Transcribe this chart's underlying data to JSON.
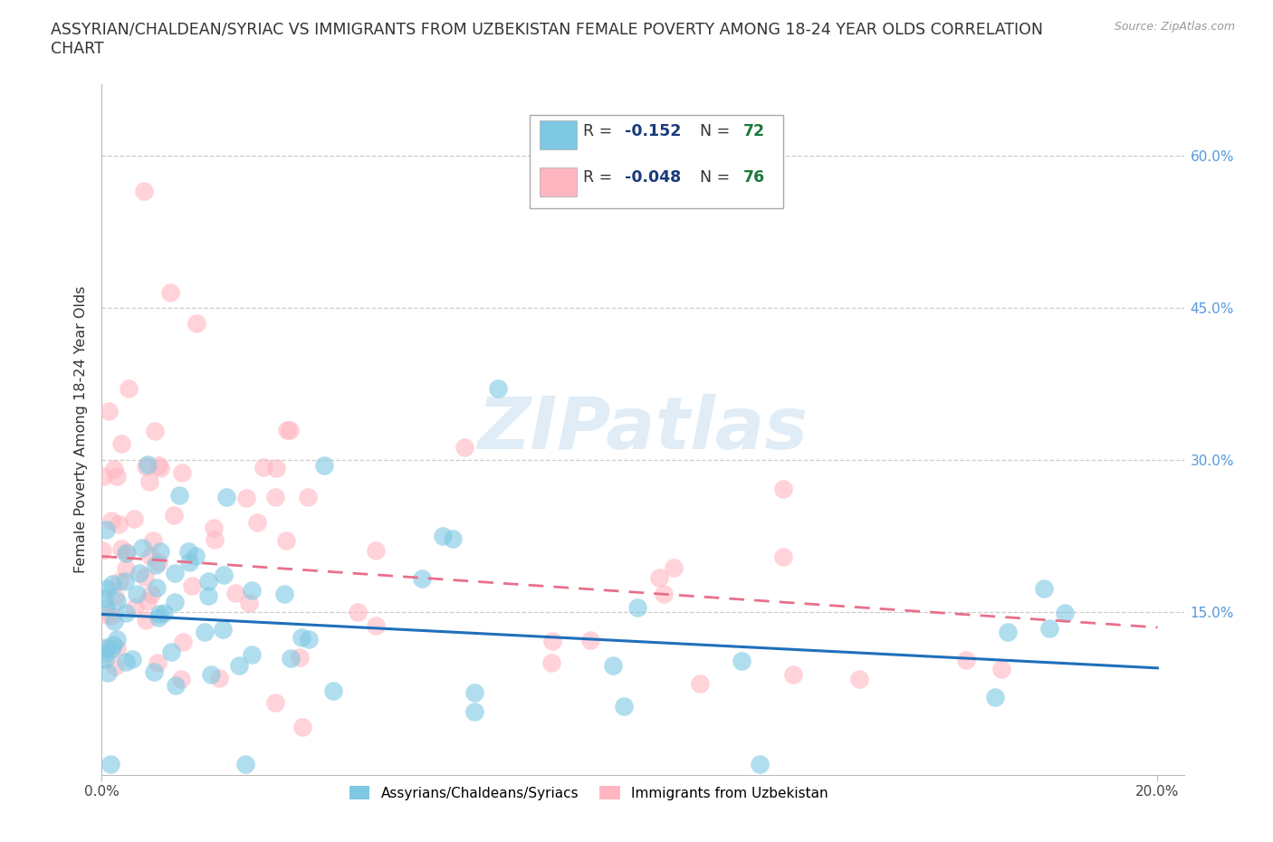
{
  "title_line1": "ASSYRIAN/CHALDEAN/SYRIAC VS IMMIGRANTS FROM UZBEKISTAN FEMALE POVERTY AMONG 18-24 YEAR OLDS CORRELATION",
  "title_line2": "CHART",
  "source": "Source: ZipAtlas.com",
  "ylabel": "Female Poverty Among 18-24 Year Olds",
  "xlim": [
    0.0,
    0.205
  ],
  "ylim": [
    -0.01,
    0.67
  ],
  "blue_color": "#7ec8e3",
  "pink_color": "#ffb6c1",
  "blue_line_color": "#1f6fba",
  "pink_line_color": "#e8708a",
  "blue_label": "Assyrians/Chaldeans/Syriacs",
  "pink_label": "Immigrants from Uzbekistan",
  "blue_R": "-0.152",
  "blue_N": "72",
  "pink_R": "-0.048",
  "pink_N": "76",
  "legend_R_label": "R = ",
  "legend_N_label": "N = ",
  "legend_R_color": "#1a3a7a",
  "legend_N_color": "#1a7a3a",
  "watermark_text": "ZIPatlas",
  "background_color": "#ffffff",
  "title_fontsize": 12.5,
  "right_tick_color": "#5599dd",
  "blue_trend_start_y": 0.148,
  "blue_trend_end_y": 0.095,
  "pink_trend_start_y": 0.205,
  "pink_trend_end_y": 0.135
}
